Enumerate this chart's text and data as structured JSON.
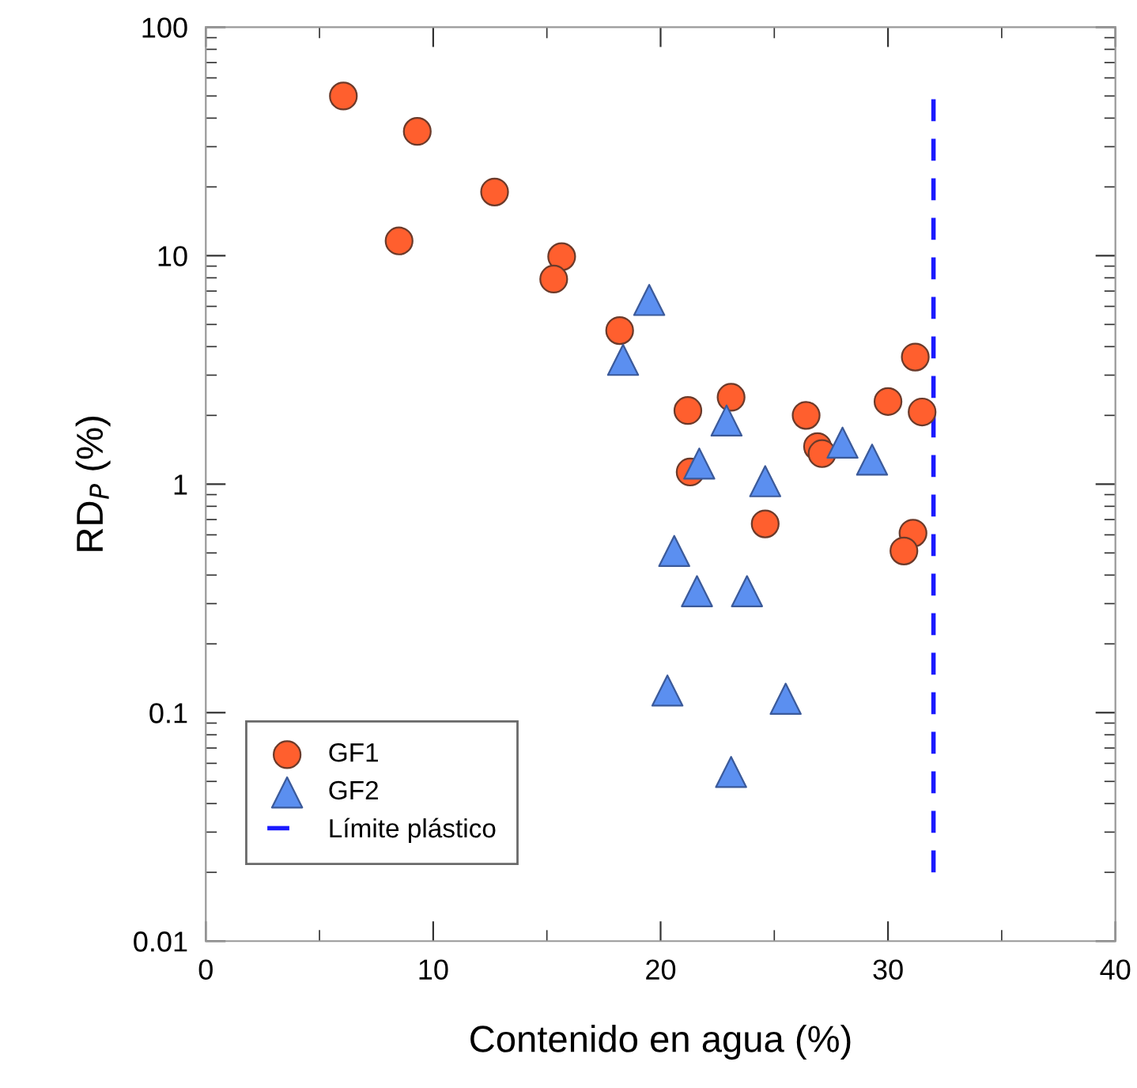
{
  "chart_data": {
    "type": "scatter",
    "xlabel": "Contenido en agua (%)",
    "ylabel": "RD$_{P}$ (%)",
    "log": "y",
    "xlim": [
      0,
      40
    ],
    "xticks": [
      0,
      10,
      20,
      30,
      40
    ],
    "ylim": [
      0.01,
      100
    ],
    "yticks": [
      0.01,
      0.1,
      1,
      10,
      100
    ],
    "grid": false,
    "legend": "bottom left",
    "series": [
      {
        "name": "GF1",
        "color": "#ff5f2e",
        "marker": "circle",
        "x": [
          6.05,
          9.3,
          8.5,
          12.7,
          15.65,
          15.3,
          18.2,
          21.2,
          23.1,
          21.3,
          26.4,
          26.9,
          27.1,
          24.6,
          30.0,
          31.2,
          31.5,
          31.1,
          30.7
        ],
        "values": [
          50,
          35,
          11.6,
          19,
          9.9,
          7.9,
          4.7,
          2.1,
          2.4,
          1.13,
          2.0,
          1.46,
          1.36,
          0.67,
          2.3,
          3.6,
          2.07,
          0.61,
          0.51
        ]
      },
      {
        "name": "GF2",
        "color": "#5b8ff0",
        "marker": "triangle",
        "x": [
          19.5,
          18.35,
          22.9,
          21.7,
          28.0,
          29.3,
          24.6,
          20.6,
          21.6,
          23.8,
          20.3,
          25.5,
          23.1
        ],
        "values": [
          6.4,
          3.5,
          1.9,
          1.23,
          1.52,
          1.28,
          1.03,
          0.51,
          0.34,
          0.34,
          0.125,
          0.115,
          0.055
        ]
      },
      {
        "name": "Límite plástico",
        "type": "line",
        "color": "#1a1aff",
        "line_style": "dashed",
        "marker": "none",
        "x": [
          32,
          32
        ],
        "values": [
          0.02,
          50
        ]
      }
    ]
  }
}
